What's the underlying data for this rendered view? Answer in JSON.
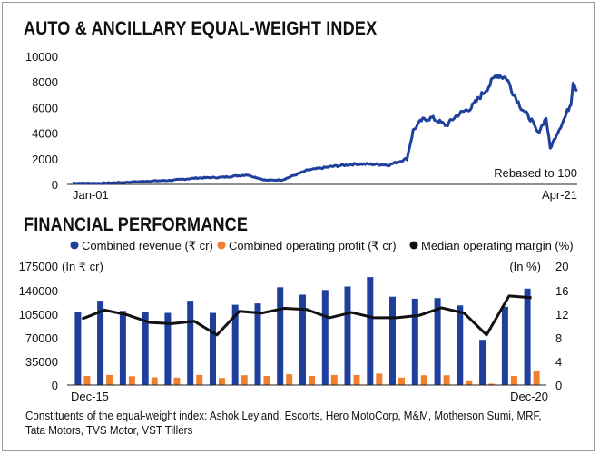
{
  "titles": {
    "index_title": "AUTO & ANCILLARY EQUAL-WEIGHT INDEX",
    "financial_title": "FINANCIAL PERFORMANCE"
  },
  "footnote": "Constituents of the equal-weight index: Ashok Leyland, Escorts, Hero MotoCorp, M&M, Motherson Sumi, MRF, Tata Motors, TVS Motor, VST Tillers",
  "colors": {
    "revenue": "#1f3f9c",
    "profit": "#f07f2e",
    "margin": "#111111",
    "index": "#1f3f9c"
  },
  "chart_data": [
    {
      "type": "line",
      "title": "AUTO & ANCILLARY EQUAL-WEIGHT INDEX",
      "annotation": "Rebased to 100",
      "x_start_label": "Jan-01",
      "x_end_label": "Apr-21",
      "yticks": [
        0,
        2000,
        4000,
        6000,
        8000,
        10000
      ],
      "ylim": [
        0,
        10000
      ],
      "x": [
        "2001-01",
        "2002-01",
        "2003-01",
        "2004-01",
        "2005-01",
        "2006-01",
        "2007-01",
        "2008-01",
        "2008-10",
        "2009-06",
        "2010-06",
        "2011-06",
        "2012-06",
        "2013-06",
        "2013-09",
        "2014-06",
        "2014-09",
        "2015-01",
        "2015-06",
        "2016-01",
        "2016-06",
        "2017-01",
        "2017-06",
        "2017-10",
        "2018-01",
        "2018-06",
        "2018-09",
        "2019-01",
        "2019-06",
        "2019-09",
        "2020-01",
        "2020-03",
        "2020-06",
        "2020-10",
        "2021-01",
        "2021-02",
        "2021-04"
      ],
      "values": [
        100,
        80,
        150,
        250,
        320,
        500,
        550,
        750,
        320,
        350,
        1100,
        1400,
        1600,
        1550,
        1500,
        2000,
        4200,
        5000,
        5200,
        4600,
        5400,
        6000,
        7000,
        7800,
        8600,
        8300,
        7200,
        6000,
        5000,
        4000,
        5200,
        2800,
        3900,
        5200,
        6400,
        8100,
        7300
      ]
    },
    {
      "type": "bar",
      "title": "FINANCIAL PERFORMANCE",
      "legend": [
        "Combined revenue (₹ cr)",
        "Combined operating profit (₹ cr)",
        "Median operating margin (%)"
      ],
      "legend_placement": "top",
      "left_unit": "(In ₹ cr)",
      "right_unit": "(In %)",
      "x_start_label": "Dec-15",
      "x_end_label": "Dec-20",
      "y_left_ticks": [
        0,
        35000,
        70000,
        105000,
        140000,
        175000
      ],
      "y_right_ticks": [
        0,
        4,
        8,
        12,
        16,
        20
      ],
      "ylim_left": [
        0,
        175000
      ],
      "ylim_right": [
        0,
        20
      ],
      "categories": [
        "Dec-15",
        "Mar-16",
        "Jun-16",
        "Sep-16",
        "Dec-16",
        "Mar-17",
        "Jun-17",
        "Sep-17",
        "Dec-17",
        "Mar-18",
        "Jun-18",
        "Sep-18",
        "Dec-18",
        "Mar-19",
        "Jun-19",
        "Sep-19",
        "Dec-19",
        "Mar-20",
        "Jun-20",
        "Sep-20",
        "Dec-20"
      ],
      "series": [
        {
          "name": "Combined revenue (₹ cr)",
          "kind": "bar",
          "axis": "left",
          "values": [
            108000,
            125000,
            110000,
            108000,
            107000,
            125000,
            107000,
            119000,
            121000,
            145000,
            134000,
            141000,
            146000,
            160000,
            131000,
            128000,
            129000,
            118000,
            67000,
            116000,
            143000
          ]
        },
        {
          "name": "Combined operating profit (₹ cr)",
          "kind": "bar",
          "axis": "left",
          "values": [
            13500,
            15000,
            13000,
            11500,
            11000,
            15000,
            10500,
            14500,
            13500,
            16000,
            13500,
            15000,
            15000,
            17000,
            11000,
            14500,
            14500,
            7000,
            2000,
            13500,
            21000
          ]
        },
        {
          "name": "Median operating margin (%)",
          "kind": "line",
          "axis": "right",
          "values": [
            11.2,
            12.7,
            11.9,
            10.6,
            10.4,
            10.8,
            8.5,
            12.5,
            12.2,
            13.0,
            12.8,
            11.4,
            12.3,
            11.4,
            11.4,
            11.8,
            13.1,
            12.2,
            8.5,
            15.1,
            14.8
          ]
        }
      ]
    }
  ]
}
